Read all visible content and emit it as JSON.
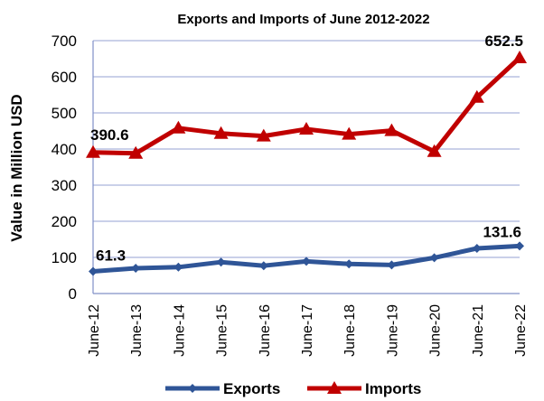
{
  "chart_data": {
    "type": "line",
    "title": "Exports and Imports of June 2012-2022",
    "xlabel": "",
    "ylabel": "Value in  Million USD",
    "ylim": [
      0,
      700
    ],
    "yticks": [
      0,
      100,
      200,
      300,
      400,
      500,
      600,
      700
    ],
    "categories": [
      "June-12",
      "June-13",
      "June-14",
      "June-15",
      "June-16",
      "June-17",
      "June-18",
      "June-19",
      "June-20",
      "June-21",
      "June-22"
    ],
    "grid": "horizontal",
    "legend": "bottom",
    "series": [
      {
        "name": "Exports",
        "color": "#2F5597",
        "marker": "diamond",
        "values": [
          61.3,
          70,
          73,
          87,
          77,
          89,
          82,
          79,
          99,
          125,
          131.6
        ],
        "labels": [
          {
            "index": 0,
            "text": "61.3"
          },
          {
            "index": 10,
            "text": "131.6"
          }
        ]
      },
      {
        "name": "Imports",
        "color": "#C00000",
        "marker": "triangle",
        "values": [
          390.6,
          388,
          458,
          443,
          436,
          455,
          441,
          451,
          393,
          543,
          652.5
        ],
        "labels": [
          {
            "index": 0,
            "text": "390.6"
          },
          {
            "index": 10,
            "text": "652.5"
          }
        ]
      }
    ]
  }
}
